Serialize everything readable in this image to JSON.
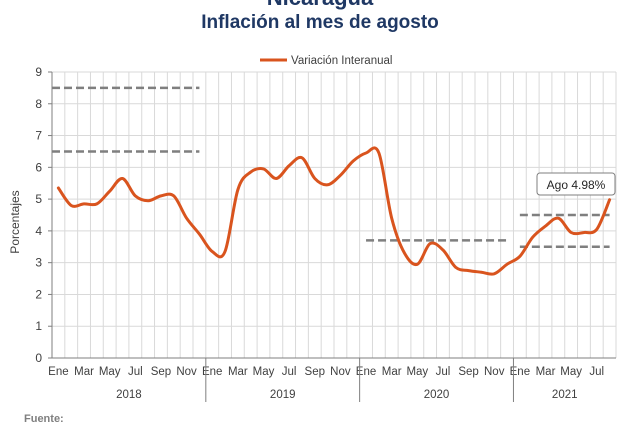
{
  "header": {
    "top_title": "Nicaragua",
    "source_label": "Fuente:"
  },
  "chart_data": {
    "type": "line",
    "title": "Inflación al mes de agosto",
    "xlabel": "",
    "ylabel": "Porcentajes",
    "ylim": [
      0,
      9
    ],
    "yticks": [
      0,
      1,
      2,
      3,
      4,
      5,
      6,
      7,
      8,
      9
    ],
    "grid": true,
    "legend": "top-center",
    "x_tick_labels": [
      "Ene",
      "Mar",
      "May",
      "Jul",
      "Sep",
      "Nov",
      "Ene",
      "Mar",
      "May",
      "Jul",
      "Sep",
      "Nov",
      "Ene",
      "Mar",
      "May",
      "Jul",
      "Sep",
      "Nov",
      "Ene",
      "Mar",
      "May",
      "Jul"
    ],
    "x_tick_months": [
      0,
      2,
      4,
      6,
      8,
      10,
      12,
      14,
      16,
      18,
      20,
      22,
      24,
      26,
      28,
      30,
      32,
      34,
      36,
      38,
      40,
      42
    ],
    "years": [
      {
        "label": "2018",
        "start": 0,
        "end": 12
      },
      {
        "label": "2019",
        "start": 12,
        "end": 24
      },
      {
        "label": "2020",
        "start": 24,
        "end": 36
      },
      {
        "label": "2021",
        "start": 36,
        "end": 44
      }
    ],
    "months_total": 44,
    "series": [
      {
        "name": "Variación Interanual",
        "color": "#d9541e",
        "values": [
          5.35,
          4.8,
          4.85,
          4.85,
          5.25,
          5.65,
          5.1,
          4.95,
          5.1,
          5.1,
          4.4,
          3.9,
          3.35,
          3.35,
          5.3,
          5.85,
          5.95,
          5.65,
          6.05,
          6.3,
          5.65,
          5.45,
          5.75,
          6.2,
          6.45,
          6.45,
          4.4,
          3.3,
          2.95,
          3.6,
          3.4,
          2.85,
          2.75,
          2.7,
          2.65,
          2.95,
          3.2,
          3.8,
          4.15,
          4.4,
          3.95,
          3.95,
          4.05,
          4.98
        ]
      }
    ],
    "reference_lines": [
      {
        "y": 8.5,
        "start": -0.5,
        "end": 11
      },
      {
        "y": 6.5,
        "start": -0.5,
        "end": 11
      },
      {
        "y": 3.7,
        "start": 24,
        "end": 35
      },
      {
        "y": 4.5,
        "start": 36,
        "end": 43
      },
      {
        "y": 3.5,
        "start": 36,
        "end": 43
      }
    ],
    "annotation": {
      "text": "Ago 4.98%",
      "x": 43,
      "y": 4.98
    },
    "reference_color": "#7f7f7f",
    "grid_color": "#d9d9d9",
    "axis_color": "#7f7f7f"
  }
}
